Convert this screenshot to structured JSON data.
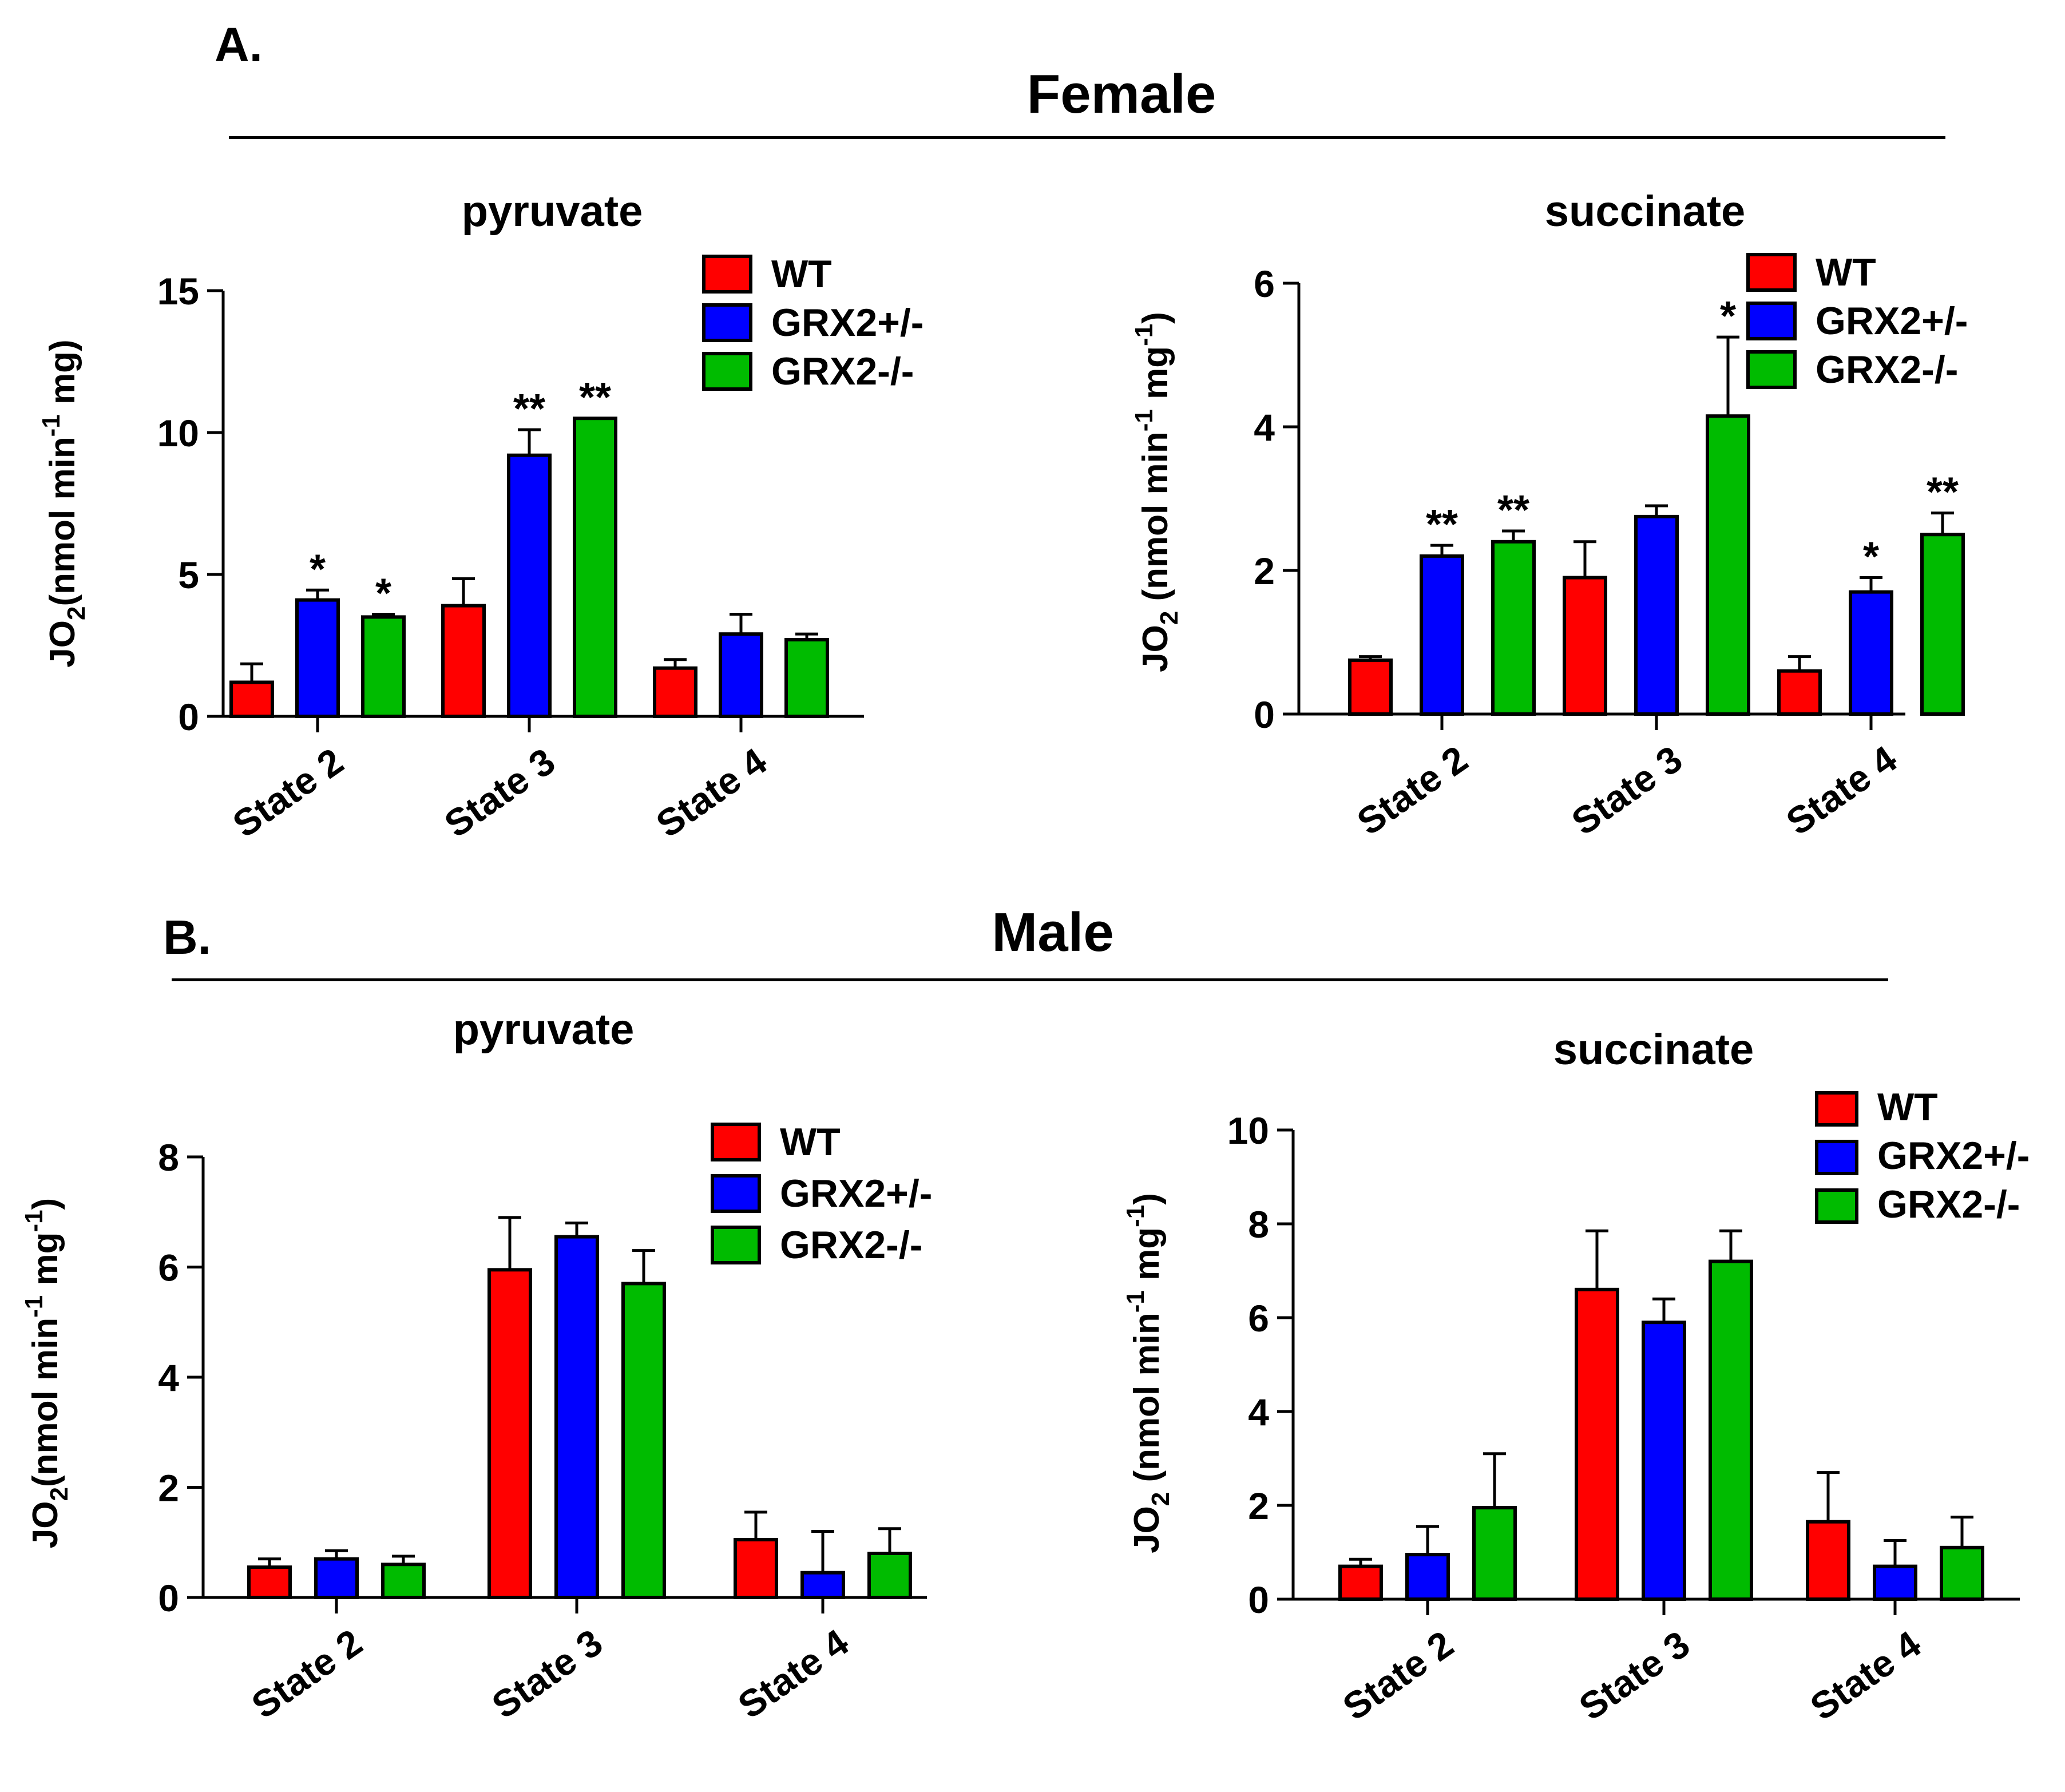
{
  "panels": {
    "a": {
      "letter": "A.",
      "title": "Female"
    },
    "b": {
      "letter": "B.",
      "title": "Male"
    }
  },
  "colors": {
    "WT": "#ff0000",
    "GRX2+/-": "#0000ff",
    "GRX2-/-": "#00bb00"
  },
  "chart_data": [
    {
      "id": "female-pyruvate",
      "type": "bar",
      "title": "pyruvate",
      "ylabel_main": "JO",
      "ylabel_sub": "2",
      "ylabel_units": "(nmol min",
      "ylabel_sup": "-1",
      "ylabel_mg": " mg",
      "ylabel_close": ")",
      "ylim": [
        0,
        15
      ],
      "yticks": [
        0,
        5,
        10,
        15
      ],
      "categories": [
        "State 2",
        "State 3",
        "State 4"
      ],
      "legend": [
        "WT",
        "GRX2+/-",
        "GRX2-/-"
      ],
      "series": [
        {
          "name": "WT",
          "values": [
            1.2,
            3.9,
            1.7
          ],
          "errors": [
            0.65,
            0.95,
            0.3
          ]
        },
        {
          "name": "GRX2+/-",
          "values": [
            4.1,
            9.2,
            2.9
          ],
          "errors": [
            0.35,
            0.9,
            0.7
          ]
        },
        {
          "name": "GRX2-/-",
          "values": [
            3.5,
            10.5,
            2.7
          ],
          "errors": [
            0.1,
            0.0,
            0.2
          ]
        }
      ],
      "annotations": [
        [
          "",
          "*",
          "*"
        ],
        [
          "",
          "**",
          "**"
        ],
        [
          "",
          "",
          ""
        ]
      ]
    },
    {
      "id": "female-succinate",
      "type": "bar",
      "title": "succinate",
      "ylabel_main": "JO",
      "ylabel_sub": "2",
      "ylabel_units": " (nmol min",
      "ylabel_sup": "-1",
      "ylabel_mg": " mg",
      "ylabel_sup2": "-1",
      "ylabel_close": ")",
      "ylim": [
        0,
        6
      ],
      "yticks": [
        0,
        2,
        4,
        6
      ],
      "categories": [
        "State 2",
        "State 3",
        "State 4"
      ],
      "legend": [
        "WT",
        "GRX2+/-",
        "GRX2-/-"
      ],
      "series": [
        {
          "name": "WT",
          "values": [
            0.75,
            1.9,
            0.6
          ],
          "errors": [
            0.05,
            0.5,
            0.2
          ]
        },
        {
          "name": "GRX2+/-",
          "values": [
            2.2,
            2.75,
            1.7
          ],
          "errors": [
            0.15,
            0.15,
            0.2
          ]
        },
        {
          "name": "GRX2-/-",
          "values": [
            2.4,
            4.15,
            2.5
          ],
          "errors": [
            0.15,
            1.1,
            0.3
          ]
        }
      ],
      "annotations": [
        [
          "",
          "**",
          "**"
        ],
        [
          "",
          "",
          "*"
        ],
        [
          "",
          "*",
          "**"
        ]
      ]
    },
    {
      "id": "male-pyruvate",
      "type": "bar",
      "title": "pyruvate",
      "ylabel_main": "JO",
      "ylabel_sub": "2",
      "ylabel_units": "(nmol min",
      "ylabel_sup": "-1",
      "ylabel_mg": " mg",
      "ylabel_sup2": "-1",
      "ylabel_close": ")",
      "ylim": [
        0,
        8
      ],
      "yticks": [
        0,
        2,
        4,
        6,
        8
      ],
      "categories": [
        "State 2",
        "State 3",
        "State 4"
      ],
      "legend": [
        "WT",
        "GRX2+/-",
        "GRX2-/-"
      ],
      "series": [
        {
          "name": "WT",
          "values": [
            0.55,
            5.95,
            1.05
          ],
          "errors": [
            0.15,
            0.95,
            0.5
          ]
        },
        {
          "name": "GRX2+/-",
          "values": [
            0.7,
            6.55,
            0.45
          ],
          "errors": [
            0.15,
            0.25,
            0.75
          ]
        },
        {
          "name": "GRX2-/-",
          "values": [
            0.6,
            5.7,
            0.8
          ],
          "errors": [
            0.15,
            0.6,
            0.45
          ]
        }
      ],
      "annotations": [
        [
          "",
          "",
          ""
        ],
        [
          "",
          "",
          ""
        ],
        [
          "",
          "",
          ""
        ]
      ]
    },
    {
      "id": "male-succinate",
      "type": "bar",
      "title": "succinate",
      "ylabel_main": "JO",
      "ylabel_sub": "2",
      "ylabel_units": " (nmol min",
      "ylabel_sup": "-1",
      "ylabel_mg": " mg",
      "ylabel_sup2": "-1",
      "ylabel_close": ")",
      "ylim": [
        0,
        10
      ],
      "yticks": [
        0,
        2,
        4,
        6,
        8,
        10
      ],
      "categories": [
        "State 2",
        "State 3",
        "State 4"
      ],
      "legend": [
        "WT",
        "GRX2+/-",
        "GRX2-/-"
      ],
      "series": [
        {
          "name": "WT",
          "values": [
            0.7,
            6.6,
            1.65
          ],
          "errors": [
            0.15,
            1.25,
            1.05
          ]
        },
        {
          "name": "GRX2+/-",
          "values": [
            0.95,
            5.9,
            0.7
          ],
          "errors": [
            0.6,
            0.5,
            0.55
          ]
        },
        {
          "name": "GRX2-/-",
          "values": [
            1.95,
            7.2,
            1.1
          ],
          "errors": [
            1.15,
            0.65,
            0.65
          ]
        }
      ],
      "annotations": [
        [
          "",
          "",
          ""
        ],
        [
          "",
          "",
          ""
        ],
        [
          "",
          "",
          ""
        ]
      ]
    }
  ]
}
